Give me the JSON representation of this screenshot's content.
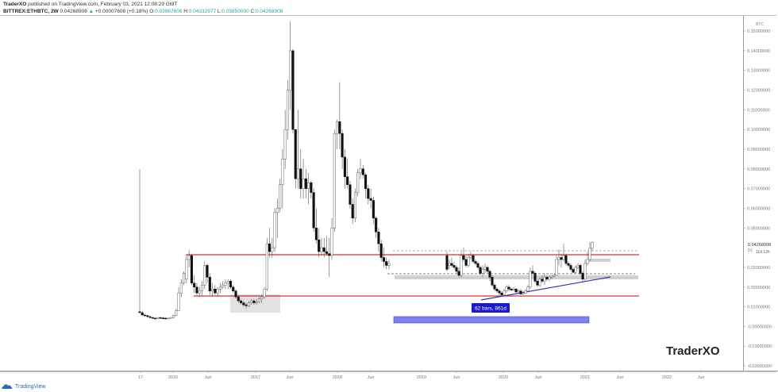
{
  "header": {
    "author": "TraderXO",
    "published_text": "published on TradingView.com, February 03, 2021 12:08:29 GMT",
    "symbol": "BITTREX:ETHBTC, 2W",
    "last": "0.04268908",
    "change_arrow": "▲",
    "change": "+0.00007608 (+0.18%)",
    "o_label": "O:",
    "o": "0.03967606",
    "h_label": "H:",
    "h": "0.04332977",
    "l_label": "L:",
    "l": "0.03850000",
    "c_label": "C:",
    "c": "0.04268908"
  },
  "price_axis": {
    "unit": "BTC",
    "ticks": [
      "0.15000000",
      "0.14000000",
      "0.13000000",
      "0.12000000",
      "0.11000000",
      "0.10000000",
      "0.09000000",
      "0.08000000",
      "0.07000000",
      "0.06000000",
      "0.05000000",
      "0.03000000",
      "0.02000000",
      "0.01000000",
      "-0.00000000",
      "-0.01000000",
      "-0.02000000"
    ],
    "last_price_label": "0.04268908",
    "countdown_label": "11d 12h",
    "countdown_prefix": "0.(",
    "colors": {
      "label_bg": "#ffffff"
    }
  },
  "time_axis": {
    "ticks": [
      "17",
      "2016",
      "Jun",
      "2017",
      "Jun",
      "2018",
      "Jun",
      "2019",
      "Jun",
      "2020",
      "Jun",
      "2021",
      "Jun",
      "2022",
      "Jun"
    ]
  },
  "annotations": {
    "range_label": "62 bars, 861d",
    "watermark": "TraderXO",
    "colors": {
      "support_line": "#cc3333",
      "trend_line": "#3333cc",
      "range_box": "#7777ee",
      "range_label_bg": "#1a1acc",
      "zone": "#d5d5d5"
    }
  },
  "footer": {
    "brand": "TradingView"
  },
  "chart_data": {
    "type": "candlestick",
    "title": "BITTREX:ETHBTC, 2W",
    "ylabel": "BTC",
    "ylim": [
      -0.02,
      0.155
    ],
    "grid": false,
    "x_ticks": [
      "17",
      "2016",
      "Jun",
      "2017",
      "Jun",
      "2018",
      "Jun",
      "2019",
      "Jun",
      "2020",
      "Jun",
      "2021",
      "Jun",
      "2022",
      "Jun"
    ],
    "y_ticks": [
      0.15,
      0.14,
      0.13,
      0.12,
      0.11,
      0.1,
      0.09,
      0.08,
      0.07,
      0.06,
      0.05,
      0.03,
      0.02,
      0.01,
      0.0,
      -0.01,
      -0.02
    ],
    "last_price": 0.04268908,
    "candles_approx": [
      {
        "t": "2015-08",
        "o": 0.008,
        "h": 0.08,
        "l": 0.007,
        "c": 0.008
      },
      {
        "t": "2015-10",
        "o": 0.0055,
        "h": 0.006,
        "l": 0.004,
        "c": 0.0045
      },
      {
        "t": "2015-12",
        "o": 0.0045,
        "h": 0.005,
        "l": 0.0035,
        "c": 0.004
      },
      {
        "t": "2016-02",
        "o": 0.008,
        "h": 0.025,
        "l": 0.007,
        "c": 0.022
      },
      {
        "t": "2016-03",
        "o": 0.025,
        "h": 0.04,
        "l": 0.023,
        "c": 0.036
      },
      {
        "t": "2016-06",
        "o": 0.036,
        "h": 0.038,
        "l": 0.02,
        "c": 0.022
      },
      {
        "t": "2016-07",
        "o": 0.017,
        "h": 0.032,
        "l": 0.014,
        "c": 0.03
      },
      {
        "t": "2016-10",
        "o": 0.015,
        "h": 0.018,
        "l": 0.01,
        "c": 0.011
      },
      {
        "t": "2017-01",
        "o": 0.011,
        "h": 0.014,
        "l": 0.009,
        "c": 0.013
      },
      {
        "t": "2017-03",
        "o": 0.018,
        "h": 0.055,
        "l": 0.017,
        "c": 0.05
      },
      {
        "t": "2017-06",
        "o": 0.125,
        "h": 0.155,
        "l": 0.09,
        "c": 0.14
      },
      {
        "t": "2017-07",
        "o": 0.14,
        "h": 0.14,
        "l": 0.1,
        "c": 0.105
      },
      {
        "t": "2017-09",
        "o": 0.075,
        "h": 0.08,
        "l": 0.068,
        "c": 0.07
      },
      {
        "t": "2017-12",
        "o": 0.04,
        "h": 0.055,
        "l": 0.027,
        "c": 0.036
      },
      {
        "t": "2018-01",
        "o": 0.09,
        "h": 0.124,
        "l": 0.085,
        "c": 0.105
      },
      {
        "t": "2018-04",
        "o": 0.06,
        "h": 0.085,
        "l": 0.05,
        "c": 0.08
      },
      {
        "t": "2018-09",
        "o": 0.04,
        "h": 0.042,
        "l": 0.028,
        "c": 0.03
      },
      {
        "t": "2019-01",
        "o": 0.035,
        "h": 0.04,
        "l": 0.03,
        "c": 0.037
      },
      {
        "t": "2019-09",
        "o": 0.018,
        "h": 0.02,
        "l": 0.016,
        "c": 0.017
      },
      {
        "t": "2020-03",
        "o": 0.025,
        "h": 0.027,
        "l": 0.021,
        "c": 0.023
      },
      {
        "t": "2020-08",
        "o": 0.03,
        "h": 0.04,
        "l": 0.029,
        "c": 0.035
      },
      {
        "t": "2020-12",
        "o": 0.025,
        "h": 0.028,
        "l": 0.022,
        "c": 0.027
      },
      {
        "t": "2021-01",
        "o": 0.0397,
        "h": 0.0433,
        "l": 0.0385,
        "c": 0.0427
      }
    ],
    "horizontal_levels": [
      {
        "value": 0.036,
        "color": "#cc3333",
        "label": "resistance"
      },
      {
        "value": 0.0155,
        "color": "#cc3333",
        "label": "support"
      },
      {
        "value": 0.0385,
        "style": "dashed",
        "color": "#cc6666"
      },
      {
        "value": 0.0265,
        "style": "dashed",
        "color": "#555555"
      }
    ],
    "measure_range": {
      "label": "62 bars, 861d",
      "from": "2018-08",
      "to": "2021-01"
    }
  }
}
